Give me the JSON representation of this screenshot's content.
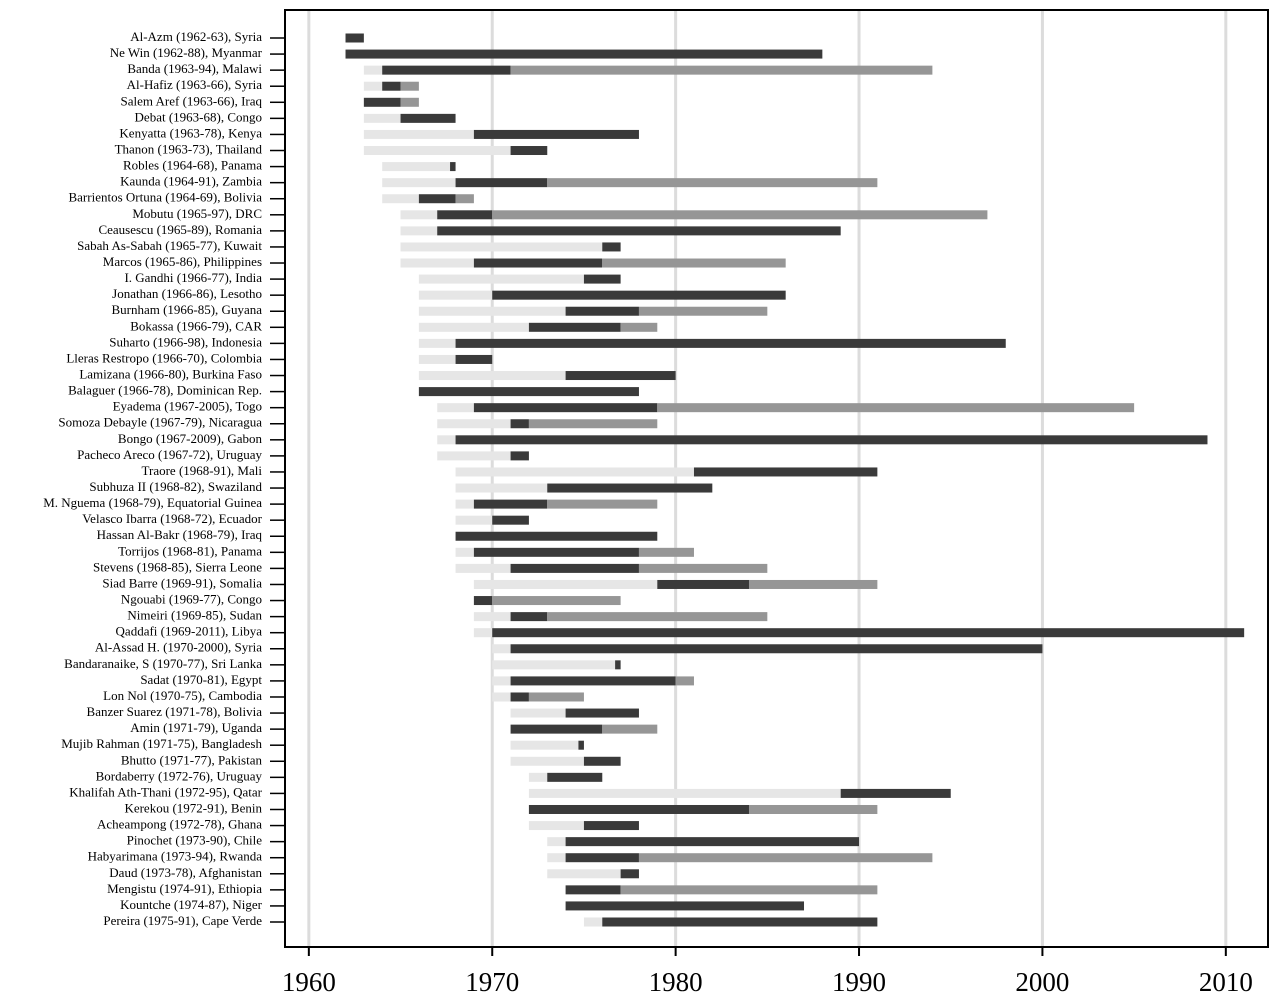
{
  "chart_data": {
    "type": "gantt",
    "categories": [
      "Al-Azm (1962-63), Syria",
      "Ne Win (1962-88), Myanmar",
      "Banda (1963-94), Malawi",
      "Al-Hafiz (1963-66), Syria",
      "Salem Aref (1963-66), Iraq",
      "Debat (1963-68), Congo",
      "Kenyatta (1963-78), Kenya",
      "Thanon (1963-73), Thailand",
      "Robles (1964-68), Panama",
      "Kaunda (1964-91), Zambia",
      "Barrientos Ortuna (1964-69), Bolivia",
      "Mobutu (1965-97), DRC",
      "Ceausescu (1965-89), Romania",
      "Sabah As-Sabah (1965-77), Kuwait",
      "Marcos (1965-86), Philippines",
      "I. Gandhi (1966-77), India",
      "Jonathan (1966-86), Lesotho",
      "Burnham (1966-85), Guyana",
      "Bokassa (1966-79), CAR",
      "Suharto (1966-98), Indonesia",
      "Lleras Restropo (1966-70), Colombia",
      "Lamizana (1966-80), Burkina Faso",
      "Balaguer (1966-78), Dominican Rep.",
      "Eyadema (1967-2005), Togo",
      "Somoza Debayle (1967-79), Nicaragua",
      "Bongo (1967-2009), Gabon",
      "Pacheco Areco (1967-72), Uruguay",
      "Traore (1968-91), Mali",
      "Subhuza II (1968-82), Swaziland",
      "M. Nguema (1968-79), Equatorial Guinea",
      "Velasco Ibarra (1968-72), Ecuador",
      "Hassan Al-Bakr (1968-79), Iraq",
      "Torrijos (1968-81), Panama",
      "Stevens (1968-85), Sierra Leone",
      "Siad Barre (1969-91), Somalia",
      "Ngouabi (1969-77), Congo",
      "Nimeiri (1969-85), Sudan",
      "Qaddafi (1969-2011), Libya",
      "Al-Assad H. (1970-2000), Syria",
      "Bandaranaike, S (1970-77), Sri Lanka",
      "Sadat (1970-81), Egypt",
      "Lon Nol (1970-75), Cambodia",
      "Banzer Suarez (1971-78), Bolivia",
      "Amin (1971-79), Uganda",
      "Mujib Rahman (1971-75), Bangladesh",
      "Bhutto (1971-77), Pakistan",
      "Bordaberry (1972-76), Uruguay",
      "Khalifah Ath-Thani (1972-95), Qatar",
      "Kerekou (1972-91), Benin",
      "Acheampong (1972-78), Ghana",
      "Pinochet (1973-90), Chile",
      "Habyarimana (1973-94), Rwanda",
      "Daud (1973-78), Afghanistan",
      "Mengistu (1974-91), Ethiopia",
      "Kountche (1974-87), Niger",
      "Pereira (1975-91), Cape Verde"
    ],
    "series": [
      {
        "color": "#e6e6e6",
        "values": [
          null,
          null,
          [
            1963,
            1964
          ],
          [
            1963,
            1964
          ],
          null,
          [
            1963,
            1965
          ],
          [
            1963,
            1969
          ],
          [
            1963,
            1971
          ],
          [
            1964,
            1967.7
          ],
          [
            1964,
            1968
          ],
          [
            1964,
            1966
          ],
          [
            1965,
            1967
          ],
          [
            1965,
            1967
          ],
          [
            1965,
            1976
          ],
          [
            1965,
            1969
          ],
          [
            1966,
            1975
          ],
          [
            1966,
            1970
          ],
          [
            1966,
            1974
          ],
          [
            1966,
            1972
          ],
          [
            1966,
            1968
          ],
          [
            1966,
            1968
          ],
          [
            1966,
            1974
          ],
          null,
          [
            1967,
            1969
          ],
          [
            1967,
            1971
          ],
          [
            1967,
            1968
          ],
          [
            1967,
            1971
          ],
          [
            1968,
            1981
          ],
          [
            1968,
            1973
          ],
          [
            1968,
            1969
          ],
          [
            1968,
            1970
          ],
          null,
          [
            1968,
            1969
          ],
          [
            1968,
            1971
          ],
          [
            1969,
            1979
          ],
          null,
          [
            1969,
            1971
          ],
          [
            1969,
            1970
          ],
          [
            1970,
            1971
          ],
          [
            1970,
            1976.7
          ],
          [
            1970,
            1971
          ],
          [
            1970,
            1971
          ],
          [
            1971,
            1974
          ],
          null,
          [
            1971,
            1974.7
          ],
          [
            1971,
            1975
          ],
          [
            1972,
            1973
          ],
          [
            1972,
            1989
          ],
          null,
          [
            1972,
            1975
          ],
          [
            1973,
            1974
          ],
          [
            1973,
            1974
          ],
          [
            1973,
            1977
          ],
          null,
          null,
          [
            1975,
            1976
          ]
        ]
      },
      {
        "color": "#3a3a3a",
        "values": [
          [
            1962,
            1963
          ],
          [
            1962,
            1988
          ],
          [
            1964,
            1971
          ],
          [
            1964,
            1965
          ],
          [
            1963,
            1965
          ],
          [
            1965,
            1968
          ],
          [
            1969,
            1978
          ],
          [
            1971,
            1973
          ],
          [
            1967.7,
            1968
          ],
          [
            1968,
            1973
          ],
          [
            1966,
            1968
          ],
          [
            1967,
            1970
          ],
          [
            1967,
            1989
          ],
          [
            1976,
            1977
          ],
          [
            1969,
            1976
          ],
          [
            1975,
            1977
          ],
          [
            1970,
            1986
          ],
          [
            1974,
            1978
          ],
          [
            1972,
            1977
          ],
          [
            1968,
            1998
          ],
          [
            1968,
            1970
          ],
          [
            1974,
            1980
          ],
          [
            1966,
            1978
          ],
          [
            1969,
            1979
          ],
          [
            1971,
            1972
          ],
          [
            1968,
            2009
          ],
          [
            1971,
            1972
          ],
          [
            1981,
            1991
          ],
          [
            1973,
            1982
          ],
          [
            1969,
            1973
          ],
          [
            1970,
            1972
          ],
          [
            1968,
            1979
          ],
          [
            1969,
            1978
          ],
          [
            1971,
            1978
          ],
          [
            1979,
            1984
          ],
          [
            1969,
            1970
          ],
          [
            1971,
            1973
          ],
          [
            1970,
            2011
          ],
          [
            1971,
            2000
          ],
          [
            1976.7,
            1977
          ],
          [
            1971,
            1980
          ],
          [
            1971,
            1972
          ],
          [
            1974,
            1978
          ],
          [
            1971,
            1976
          ],
          [
            1974.7,
            1975
          ],
          [
            1975,
            1977
          ],
          [
            1973,
            1976
          ],
          [
            1989,
            1995
          ],
          [
            1972,
            1984
          ],
          [
            1975,
            1978
          ],
          [
            1974,
            1990
          ],
          [
            1974,
            1978
          ],
          [
            1977,
            1978
          ],
          [
            1974,
            1977
          ],
          [
            1974,
            1987
          ],
          [
            1976,
            1991
          ]
        ]
      },
      {
        "color": "#969696",
        "values": [
          null,
          null,
          [
            1971,
            1994
          ],
          [
            1965,
            1966
          ],
          [
            1965,
            1966
          ],
          null,
          null,
          null,
          null,
          [
            1973,
            1991
          ],
          [
            1968,
            1969
          ],
          [
            1970,
            1997
          ],
          null,
          null,
          [
            1976,
            1986
          ],
          null,
          null,
          [
            1978,
            1985
          ],
          [
            1977,
            1979
          ],
          null,
          null,
          null,
          null,
          [
            1979,
            2005
          ],
          [
            1972,
            1979
          ],
          null,
          null,
          null,
          null,
          [
            1973,
            1979
          ],
          null,
          null,
          [
            1978,
            1981
          ],
          [
            1978,
            1985
          ],
          [
            1984,
            1991
          ],
          [
            1970,
            1977
          ],
          [
            1973,
            1985
          ],
          null,
          null,
          null,
          [
            1980,
            1981
          ],
          [
            1972,
            1975
          ],
          null,
          [
            1976,
            1979
          ],
          null,
          null,
          null,
          null,
          [
            1984,
            1991
          ],
          null,
          null,
          [
            1978,
            1994
          ],
          null,
          [
            1977,
            1991
          ],
          null,
          null
        ]
      }
    ],
    "xlim": [
      1958.7,
      2012.3
    ],
    "xticks": [
      1960,
      1970,
      1980,
      1990,
      2000,
      2010
    ],
    "grid": true
  }
}
